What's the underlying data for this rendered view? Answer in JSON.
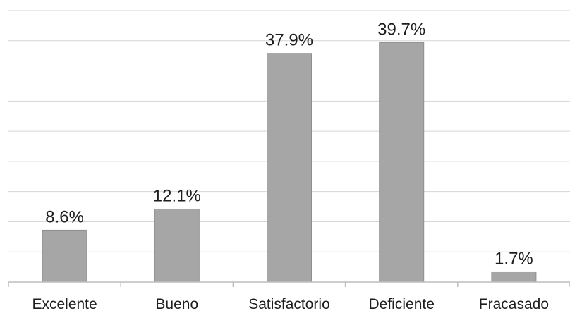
{
  "chart_data": {
    "type": "bar",
    "title": "",
    "xlabel": "",
    "ylabel": "",
    "categories": [
      "Excelente",
      "Bueno",
      "Satisfactorio",
      "Deficiente",
      "Fracasado"
    ],
    "values": [
      8.6,
      12.1,
      37.9,
      39.7,
      1.7
    ],
    "data_labels": [
      "8.6%",
      "12.1%",
      "37.9%",
      "39.7%",
      "1.7%"
    ],
    "unit": "%",
    "ylim": [
      0,
      45
    ],
    "y_gridline_step": 5,
    "grid": true,
    "show_y_axis_labels": false,
    "legend": "none",
    "bar_color": "#a6a6a6"
  }
}
